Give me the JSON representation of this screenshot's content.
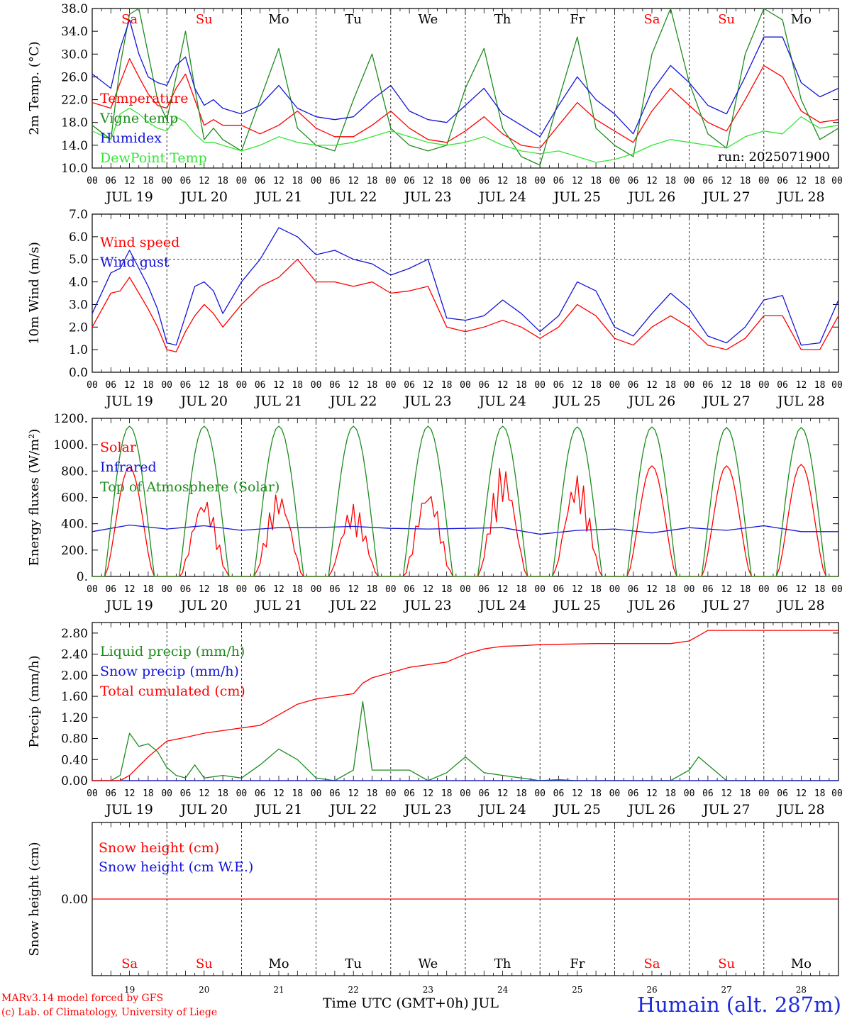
{
  "footer": {
    "credit_line1": "MARv3.14 model forced by GFS",
    "credit_line2": "(c) Lab. of Climatology, University of Liege",
    "xaxis_title": "Time UTC (GMT+0h) JUL",
    "station": "Humain (alt. 287m)"
  },
  "colors": {
    "red": "#ff0000",
    "blue": "#1414d8",
    "green": "#1e8c1e",
    "lightgreen": "#33e633",
    "weekend": "#ff0000",
    "weekday": "#000000"
  },
  "axis_common": {
    "hour_ticks": [
      "00",
      "06",
      "12",
      "18"
    ],
    "date_labels": [
      "JUL 19",
      "JUL 20",
      "JUL 21",
      "JUL 22",
      "JUL 23",
      "JUL 24",
      "JUL 25",
      "JUL 26",
      "JUL 27",
      "JUL 28"
    ],
    "day_abbr": [
      "Sa",
      "Su",
      "Mo",
      "Tu",
      "We",
      "Th",
      "Fr",
      "Sa",
      "Su",
      "Mo"
    ],
    "weekend_flags": [
      true,
      true,
      false,
      false,
      false,
      false,
      false,
      true,
      true,
      false
    ],
    "day_numbers": [
      "19",
      "20",
      "21",
      "22",
      "23",
      "24",
      "25",
      "26",
      "27",
      "28"
    ],
    "final_tick": "00"
  },
  "chart_data": [
    {
      "type": "line",
      "ylabel": "2m Temp. (°C)",
      "ylim": [
        10,
        38
      ],
      "yticks": [
        "10.0",
        "14.0",
        "18.0",
        "22.0",
        "26.0",
        "30.0",
        "34.0",
        "38.0"
      ],
      "ytick_values": [
        10,
        14,
        18,
        22,
        26,
        30,
        34,
        38
      ],
      "x_unit": "hours since JUL 19 00 UTC",
      "run_label": "run: 2025071900",
      "series": [
        {
          "name": "Temperature",
          "color": "#ff0000",
          "x": [
            0,
            6,
            9,
            12,
            15,
            18,
            21,
            24,
            27,
            30,
            33,
            36,
            39,
            42,
            48,
            54,
            60,
            66,
            72,
            78,
            84,
            90,
            96,
            102,
            108,
            114,
            120,
            126,
            132,
            138,
            144,
            150,
            156,
            162,
            168,
            174,
            180,
            186,
            192,
            198,
            204,
            210,
            216,
            222,
            228,
            234,
            240
          ],
          "y": [
            21.5,
            20.5,
            25,
            29.2,
            26,
            23,
            21,
            20.5,
            24,
            26.5,
            22,
            17.5,
            18.5,
            17.5,
            17.5,
            16,
            17.5,
            20,
            17,
            15.5,
            15.5,
            17.5,
            20,
            17,
            15,
            14.5,
            16.5,
            19,
            16,
            14,
            13.5,
            17.5,
            21.5,
            18.5,
            16.5,
            14.5,
            20,
            24,
            21,
            18,
            16.5,
            22,
            28,
            26,
            20,
            18,
            18.5
          ]
        },
        {
          "name": "Vigne temp",
          "color": "#1e8c1e",
          "x": [
            0,
            6,
            9,
            12,
            15,
            18,
            21,
            24,
            27,
            30,
            33,
            36,
            39,
            42,
            48,
            54,
            60,
            66,
            72,
            78,
            84,
            90,
            96,
            102,
            108,
            114,
            120,
            126,
            132,
            138,
            144,
            150,
            156,
            162,
            168,
            174,
            180,
            186,
            192,
            198,
            204,
            210,
            216,
            222,
            228,
            234,
            240
          ],
          "y": [
            17.5,
            15,
            28,
            37,
            38,
            30,
            22,
            18.5,
            26,
            34,
            24,
            15,
            17,
            15,
            13,
            22,
            31,
            17,
            14,
            13,
            22,
            30,
            17,
            14,
            13,
            14,
            24,
            31,
            17,
            12,
            10.5,
            22,
            33,
            17,
            14,
            12,
            30,
            38,
            25,
            16,
            13.5,
            30,
            38,
            36,
            22,
            15,
            17
          ]
        },
        {
          "name": "Humidex",
          "color": "#1414d8",
          "x": [
            0,
            6,
            9,
            12,
            15,
            18,
            21,
            24,
            27,
            30,
            33,
            36,
            39,
            42,
            48,
            54,
            60,
            66,
            72,
            78,
            84,
            90,
            96,
            102,
            108,
            114,
            120,
            126,
            132,
            138,
            144,
            150,
            156,
            162,
            168,
            174,
            180,
            186,
            192,
            198,
            204,
            210,
            216,
            222,
            228,
            234,
            240
          ],
          "y": [
            26.5,
            24,
            31,
            36,
            30,
            26,
            25,
            24.5,
            28,
            29.5,
            24,
            21,
            22,
            20.5,
            19.5,
            21,
            24.5,
            20.5,
            19,
            18.5,
            19,
            22,
            24.5,
            20,
            18.5,
            18,
            21,
            24,
            19.5,
            17.5,
            15.5,
            21,
            26,
            22,
            19.5,
            16,
            23.5,
            28,
            25,
            21,
            19.5,
            26,
            33,
            33,
            25,
            22.5,
            24
          ]
        },
        {
          "name": "DewPoint Temp",
          "color": "#33e633",
          "x": [
            0,
            6,
            9,
            12,
            15,
            18,
            21,
            24,
            27,
            30,
            33,
            36,
            39,
            42,
            48,
            54,
            60,
            66,
            72,
            78,
            84,
            90,
            96,
            102,
            108,
            114,
            120,
            126,
            132,
            138,
            144,
            150,
            156,
            162,
            168,
            174,
            180,
            186,
            192,
            198,
            204,
            210,
            216,
            222,
            228,
            234,
            240
          ],
          "y": [
            16.5,
            15,
            19.5,
            20.5,
            19.5,
            18,
            17,
            16.5,
            19,
            18,
            16,
            14.5,
            14.5,
            14,
            13,
            14,
            15.5,
            14.5,
            14,
            14,
            14.5,
            15.5,
            16.5,
            15.5,
            14.5,
            14,
            14.5,
            15.5,
            14,
            13,
            12.5,
            13,
            12,
            11,
            11.5,
            12.5,
            14,
            15,
            14.5,
            14,
            13.5,
            15.5,
            16.5,
            16,
            19,
            17,
            17.5
          ]
        }
      ]
    },
    {
      "type": "line",
      "ylabel": "10m Wind (m/s)",
      "ylim": [
        0,
        7
      ],
      "yticks": [
        "0.0",
        "1.0",
        "2.0",
        "3.0",
        "4.0",
        "5.0",
        "6.0",
        "7.0"
      ],
      "ytick_values": [
        0,
        1,
        2,
        3,
        4,
        5,
        6,
        7
      ],
      "x_unit": "hours since JUL 19 00 UTC",
      "series": [
        {
          "name": "Wind speed",
          "color": "#ff0000",
          "x": [
            0,
            6,
            9,
            12,
            15,
            18,
            21,
            24,
            27,
            30,
            33,
            36,
            39,
            42,
            48,
            54,
            60,
            66,
            72,
            78,
            84,
            90,
            96,
            102,
            108,
            114,
            120,
            126,
            132,
            138,
            144,
            150,
            156,
            162,
            168,
            174,
            180,
            186,
            192,
            198,
            204,
            210,
            216,
            222,
            228,
            234,
            240
          ],
          "y": [
            2,
            3.5,
            3.6,
            4.2,
            3.5,
            2.8,
            2,
            1,
            0.9,
            1.8,
            2.5,
            3,
            2.6,
            2,
            3,
            3.8,
            4.2,
            5,
            4,
            4,
            3.8,
            4,
            3.5,
            3.6,
            3.8,
            2,
            1.8,
            2,
            2.3,
            2,
            1.5,
            2,
            3,
            2.5,
            1.5,
            1.2,
            2,
            2.5,
            2,
            1.2,
            1,
            1.5,
            2.5,
            2.5,
            1,
            1,
            2.5
          ]
        },
        {
          "name": "Wind gust",
          "color": "#1414d8",
          "x": [
            0,
            6,
            9,
            12,
            15,
            18,
            21,
            24,
            27,
            30,
            33,
            36,
            39,
            42,
            48,
            54,
            60,
            66,
            72,
            78,
            84,
            90,
            96,
            102,
            108,
            114,
            120,
            126,
            132,
            138,
            144,
            150,
            156,
            162,
            168,
            174,
            180,
            186,
            192,
            198,
            204,
            210,
            216,
            222,
            228,
            234,
            240
          ],
          "y": [
            2.6,
            4.4,
            4.6,
            5.4,
            4.6,
            3.8,
            2.8,
            1.3,
            1.2,
            2.5,
            3.8,
            4,
            3.6,
            2.6,
            4,
            5,
            6.4,
            6,
            5.2,
            5.4,
            5,
            4.8,
            4.3,
            4.6,
            5,
            2.4,
            2.3,
            2.5,
            3.2,
            2.6,
            1.8,
            2.5,
            4,
            3.6,
            2,
            1.6,
            2.6,
            3.5,
            2.8,
            1.6,
            1.3,
            2,
            3.2,
            3.4,
            1.2,
            1.3,
            3.2
          ]
        }
      ]
    },
    {
      "type": "line",
      "ylabel": "Energy fluxes (W/m²)",
      "ylim": [
        0,
        1200
      ],
      "yticks": [
        "0.",
        "200.",
        "400.",
        "600.",
        "800.",
        "1000.",
        "1200."
      ],
      "ytick_values": [
        0,
        200,
        400,
        600,
        800,
        1000,
        1200
      ],
      "x_unit": "hours since JUL 19 00 UTC",
      "series": [
        {
          "name": "Solar",
          "color": "#ff0000",
          "daily_peak": [
            830,
            610,
            650,
            550,
            680,
            850,
            780,
            840,
            840,
            850
          ]
        },
        {
          "name": "Infrared",
          "color": "#1414d8",
          "x": [
            0,
            12,
            24,
            36,
            48,
            60,
            72,
            84,
            96,
            108,
            120,
            132,
            144,
            156,
            168,
            180,
            192,
            204,
            216,
            228,
            240
          ],
          "y": [
            340,
            390,
            360,
            385,
            350,
            370,
            370,
            380,
            365,
            360,
            365,
            370,
            320,
            350,
            360,
            330,
            370,
            350,
            385,
            340,
            340
          ]
        },
        {
          "name": "Top of Atmosphere (Solar)",
          "color": "#1e8c1e",
          "daily_peak": [
            1140,
            1140,
            1140,
            1140,
            1140,
            1140,
            1135,
            1135,
            1130,
            1130
          ]
        }
      ]
    },
    {
      "type": "line",
      "ylabel": "Precip (mm/h)",
      "ylim": [
        0,
        3.0
      ],
      "yticks": [
        "0.00",
        "0.40",
        "0.80",
        "1.20",
        "1.60",
        "2.00",
        "2.40",
        "2.80"
      ],
      "ytick_values": [
        0,
        0.4,
        0.8,
        1.2,
        1.6,
        2.0,
        2.4,
        2.8
      ],
      "x_unit": "hours since JUL 19 00 UTC",
      "series": [
        {
          "name": "Liquid precip (mm/h)",
          "color": "#1e8c1e",
          "x": [
            0,
            6,
            9,
            12,
            15,
            18,
            21,
            24,
            27,
            30,
            33,
            36,
            42,
            48,
            54,
            60,
            66,
            72,
            78,
            84,
            87,
            90,
            93,
            96,
            102,
            108,
            114,
            120,
            126,
            132,
            138,
            144,
            150,
            156,
            186,
            192,
            195,
            198,
            201,
            204,
            240
          ],
          "y": [
            0,
            0,
            0.1,
            0.9,
            0.65,
            0.7,
            0.55,
            0.25,
            0.1,
            0.05,
            0.3,
            0.05,
            0.1,
            0.05,
            0.3,
            0.6,
            0.4,
            0.05,
            0,
            0.2,
            1.5,
            0.2,
            0.2,
            0.2,
            0.2,
            0,
            0.15,
            0.45,
            0.15,
            0.1,
            0.05,
            0,
            0.02,
            0,
            0,
            0.2,
            0.45,
            0.3,
            0.15,
            0,
            0
          ]
        },
        {
          "name": "Snow precip (mm/h)",
          "color": "#1414d8",
          "x": [
            0,
            240
          ],
          "y": [
            0,
            0
          ]
        },
        {
          "name": "Total cumulated (cm)",
          "color": "#ff0000",
          "x": [
            0,
            9,
            12,
            18,
            24,
            30,
            36,
            42,
            48,
            54,
            60,
            66,
            72,
            78,
            84,
            87,
            90,
            96,
            102,
            108,
            114,
            120,
            126,
            132,
            138,
            144,
            162,
            186,
            192,
            195,
            198,
            204,
            240
          ],
          "y": [
            0,
            0,
            0.1,
            0.45,
            0.75,
            0.82,
            0.9,
            0.95,
            1.0,
            1.05,
            1.25,
            1.45,
            1.55,
            1.6,
            1.65,
            1.85,
            1.95,
            2.05,
            2.15,
            2.2,
            2.25,
            2.4,
            2.5,
            2.55,
            2.56,
            2.58,
            2.6,
            2.6,
            2.65,
            2.75,
            2.85,
            2.85,
            2.85
          ]
        }
      ]
    },
    {
      "type": "line",
      "ylabel": "Snow height (cm)",
      "ylim": [
        -1,
        1
      ],
      "yticks": [
        "0.00"
      ],
      "ytick_values": [
        0
      ],
      "x_unit": "hours since JUL 19 00 UTC",
      "series": [
        {
          "name": "Snow height (cm)",
          "color": "#ff0000",
          "x": [
            0,
            240
          ],
          "y": [
            0,
            0
          ]
        },
        {
          "name": "Snow height (cm W.E.)",
          "color": "#1414d8",
          "x": [],
          "y": []
        }
      ]
    }
  ]
}
